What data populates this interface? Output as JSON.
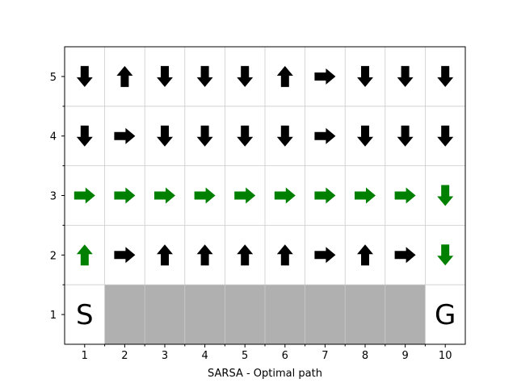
{
  "chart_data": {
    "type": "gridworld",
    "xlabel": "SARSA - Optimal path",
    "ylabel": "",
    "title": "",
    "x_ticks": [
      "1",
      "2",
      "3",
      "4",
      "5",
      "6",
      "7",
      "8",
      "9",
      "10"
    ],
    "y_ticks": [
      "1",
      "2",
      "3",
      "4",
      "5"
    ],
    "xlim": [
      0.5,
      10.5
    ],
    "ylim": [
      0.5,
      5.5
    ],
    "grid": true,
    "colors": {
      "policy": "#000000",
      "path": "#008000",
      "cliff": "#b0b0b0",
      "grid": "#cccccc"
    },
    "cliff": {
      "x_from": 2,
      "x_to": 9,
      "y": 1
    },
    "cells": [
      {
        "x": 1,
        "y": 1,
        "text": "S"
      },
      {
        "x": 10,
        "y": 1,
        "text": "G"
      }
    ],
    "arrows": [
      {
        "x": 1,
        "y": 5,
        "dir": "down",
        "path": false
      },
      {
        "x": 2,
        "y": 5,
        "dir": "up",
        "path": false
      },
      {
        "x": 3,
        "y": 5,
        "dir": "down",
        "path": false
      },
      {
        "x": 4,
        "y": 5,
        "dir": "down",
        "path": false
      },
      {
        "x": 5,
        "y": 5,
        "dir": "down",
        "path": false
      },
      {
        "x": 6,
        "y": 5,
        "dir": "up",
        "path": false
      },
      {
        "x": 7,
        "y": 5,
        "dir": "right",
        "path": false
      },
      {
        "x": 8,
        "y": 5,
        "dir": "down",
        "path": false
      },
      {
        "x": 9,
        "y": 5,
        "dir": "down",
        "path": false
      },
      {
        "x": 10,
        "y": 5,
        "dir": "down",
        "path": false
      },
      {
        "x": 1,
        "y": 4,
        "dir": "down",
        "path": false
      },
      {
        "x": 2,
        "y": 4,
        "dir": "right",
        "path": false
      },
      {
        "x": 3,
        "y": 4,
        "dir": "down",
        "path": false
      },
      {
        "x": 4,
        "y": 4,
        "dir": "down",
        "path": false
      },
      {
        "x": 5,
        "y": 4,
        "dir": "down",
        "path": false
      },
      {
        "x": 6,
        "y": 4,
        "dir": "down",
        "path": false
      },
      {
        "x": 7,
        "y": 4,
        "dir": "right",
        "path": false
      },
      {
        "x": 8,
        "y": 4,
        "dir": "down",
        "path": false
      },
      {
        "x": 9,
        "y": 4,
        "dir": "down",
        "path": false
      },
      {
        "x": 10,
        "y": 4,
        "dir": "down",
        "path": false
      },
      {
        "x": 1,
        "y": 3,
        "dir": "right",
        "path": true
      },
      {
        "x": 2,
        "y": 3,
        "dir": "right",
        "path": true
      },
      {
        "x": 3,
        "y": 3,
        "dir": "right",
        "path": true
      },
      {
        "x": 4,
        "y": 3,
        "dir": "right",
        "path": true
      },
      {
        "x": 5,
        "y": 3,
        "dir": "right",
        "path": true
      },
      {
        "x": 6,
        "y": 3,
        "dir": "right",
        "path": true
      },
      {
        "x": 7,
        "y": 3,
        "dir": "right",
        "path": true
      },
      {
        "x": 8,
        "y": 3,
        "dir": "right",
        "path": true
      },
      {
        "x": 9,
        "y": 3,
        "dir": "right",
        "path": true
      },
      {
        "x": 10,
        "y": 3,
        "dir": "down",
        "path": true
      },
      {
        "x": 1,
        "y": 2,
        "dir": "up",
        "path": true
      },
      {
        "x": 2,
        "y": 2,
        "dir": "right",
        "path": false
      },
      {
        "x": 3,
        "y": 2,
        "dir": "up",
        "path": false
      },
      {
        "x": 4,
        "y": 2,
        "dir": "up",
        "path": false
      },
      {
        "x": 5,
        "y": 2,
        "dir": "up",
        "path": false
      },
      {
        "x": 6,
        "y": 2,
        "dir": "up",
        "path": false
      },
      {
        "x": 7,
        "y": 2,
        "dir": "right",
        "path": false
      },
      {
        "x": 8,
        "y": 2,
        "dir": "up",
        "path": false
      },
      {
        "x": 9,
        "y": 2,
        "dir": "right",
        "path": false
      },
      {
        "x": 10,
        "y": 2,
        "dir": "down",
        "path": true
      }
    ]
  }
}
